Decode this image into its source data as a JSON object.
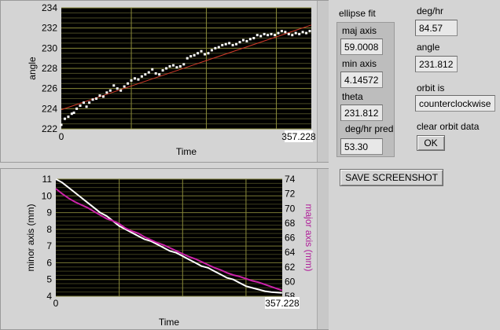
{
  "chart_data": [
    {
      "type": "scatter",
      "xlabel": "Time",
      "ylabel": "angle",
      "xlim": [
        0,
        357.228
      ],
      "ylim": [
        222,
        234
      ],
      "x_ticks": [
        "0",
        "357.228"
      ],
      "y_ticks": [
        "222",
        "224",
        "226",
        "228",
        "230",
        "232",
        "234"
      ],
      "points": [
        [
          0,
          222.4
        ],
        [
          5,
          223.0
        ],
        [
          10,
          223.2
        ],
        [
          15,
          223.5
        ],
        [
          18,
          223.6
        ],
        [
          22,
          224.0
        ],
        [
          27,
          224.3
        ],
        [
          32,
          224.6
        ],
        [
          36,
          224.2
        ],
        [
          40,
          224.6
        ],
        [
          45,
          224.9
        ],
        [
          50,
          225.0
        ],
        [
          55,
          225.3
        ],
        [
          60,
          225.2
        ],
        [
          65,
          225.6
        ],
        [
          70,
          225.8
        ],
        [
          75,
          226.3
        ],
        [
          80,
          226.0
        ],
        [
          85,
          225.8
        ],
        [
          90,
          226.2
        ],
        [
          95,
          226.5
        ],
        [
          100,
          226.8
        ],
        [
          105,
          227.0
        ],
        [
          110,
          226.9
        ],
        [
          115,
          227.2
        ],
        [
          120,
          227.4
        ],
        [
          125,
          227.6
        ],
        [
          130,
          227.9
        ],
        [
          135,
          227.5
        ],
        [
          140,
          227.4
        ],
        [
          145,
          227.8
        ],
        [
          150,
          228.0
        ],
        [
          155,
          228.2
        ],
        [
          160,
          228.3
        ],
        [
          165,
          228.1
        ],
        [
          170,
          228.2
        ],
        [
          175,
          228.4
        ],
        [
          180,
          229.0
        ],
        [
          185,
          229.2
        ],
        [
          190,
          229.3
        ],
        [
          195,
          229.5
        ],
        [
          200,
          229.7
        ],
        [
          205,
          229.4
        ],
        [
          210,
          229.5
        ],
        [
          215,
          229.8
        ],
        [
          220,
          230.0
        ],
        [
          225,
          230.1
        ],
        [
          230,
          230.3
        ],
        [
          235,
          230.4
        ],
        [
          240,
          230.5
        ],
        [
          245,
          230.3
        ],
        [
          250,
          230.4
        ],
        [
          255,
          230.6
        ],
        [
          260,
          230.8
        ],
        [
          265,
          230.7
        ],
        [
          270,
          230.9
        ],
        [
          275,
          231.0
        ],
        [
          280,
          231.3
        ],
        [
          285,
          231.2
        ],
        [
          290,
          231.4
        ],
        [
          295,
          231.3
        ],
        [
          300,
          231.4
        ],
        [
          305,
          231.3
        ],
        [
          310,
          231.5
        ],
        [
          315,
          231.7
        ],
        [
          320,
          231.6
        ],
        [
          325,
          231.4
        ],
        [
          330,
          231.3
        ],
        [
          335,
          231.5
        ],
        [
          340,
          231.4
        ],
        [
          345,
          231.6
        ],
        [
          350,
          231.5
        ],
        [
          355,
          231.7
        ]
      ],
      "fit_line": [
        [
          0,
          223.9
        ],
        [
          357.228,
          232.3
        ]
      ]
    },
    {
      "type": "line",
      "xlabel": "Time",
      "ylabel_left": "minor axis (mm)",
      "ylabel_right": "major axis (mm)",
      "xlim": [
        0,
        357.228
      ],
      "ylim_left": [
        4,
        11
      ],
      "ylim_right": [
        58,
        74
      ],
      "x_ticks": [
        "0",
        "357.228"
      ],
      "y_ticks_left": [
        "4",
        "5",
        "6",
        "7",
        "8",
        "9",
        "10",
        "11"
      ],
      "y_ticks_right": [
        "58",
        "60",
        "62",
        "64",
        "66",
        "68",
        "70",
        "72",
        "74"
      ],
      "series": [
        {
          "name": "minor axis (mm)",
          "axis": "left",
          "color": "#ffffff",
          "x": [
            0,
            10,
            20,
            30,
            40,
            50,
            60,
            70,
            80,
            90,
            100,
            110,
            120,
            130,
            140,
            150,
            160,
            170,
            180,
            190,
            200,
            210,
            220,
            230,
            240,
            250,
            260,
            270,
            280,
            290,
            300,
            310,
            320,
            330,
            340,
            357
          ],
          "y": [
            11.0,
            10.8,
            10.5,
            10.2,
            9.9,
            9.6,
            9.3,
            9.0,
            8.8,
            8.5,
            8.2,
            8.0,
            7.8,
            7.6,
            7.4,
            7.3,
            7.1,
            6.9,
            6.7,
            6.6,
            6.4,
            6.2,
            6.0,
            5.8,
            5.7,
            5.5,
            5.3,
            5.1,
            5.0,
            4.8,
            4.6,
            4.5,
            4.4,
            4.3,
            4.25,
            4.2
          ]
        },
        {
          "name": "major axis (mm)",
          "axis": "right",
          "color": "#cc22aa",
          "x": [
            0,
            10,
            20,
            30,
            40,
            50,
            60,
            70,
            80,
            90,
            100,
            110,
            120,
            130,
            140,
            150,
            160,
            170,
            180,
            190,
            200,
            210,
            220,
            230,
            240,
            250,
            260,
            270,
            280,
            290,
            300,
            310,
            320,
            330,
            340,
            357
          ],
          "y": [
            72.7,
            72.0,
            71.4,
            70.9,
            70.5,
            70.1,
            69.6,
            69.1,
            68.6,
            68.3,
            67.9,
            67.3,
            66.9,
            66.6,
            66.1,
            65.7,
            65.3,
            65.0,
            64.6,
            64.2,
            63.8,
            63.4,
            63.1,
            62.7,
            62.3,
            61.9,
            61.6,
            61.2,
            60.9,
            60.7,
            60.4,
            60.1,
            59.9,
            59.6,
            59.3,
            58.8
          ]
        }
      ]
    }
  ],
  "ellipse_fit": {
    "title": "ellipse fit",
    "maj_axis_label": "maj axis",
    "maj_axis_value": "59.0008",
    "min_axis_label": "min axis",
    "min_axis_value": "4.14572",
    "theta_label": "theta",
    "theta_value": "231.812",
    "pred_label": "deg/hr pred",
    "pred_value": "53.30"
  },
  "right_panel": {
    "deghr_label": "deg/hr",
    "deghr_value": "84.57",
    "angle_label": "angle",
    "angle_value": "231.812",
    "orbit_label": "orbit is",
    "orbit_value": "counterclockwise",
    "clear_label": "clear orbit data",
    "ok_label": "OK"
  },
  "screenshot_button": "SAVE SCREENSHOT"
}
